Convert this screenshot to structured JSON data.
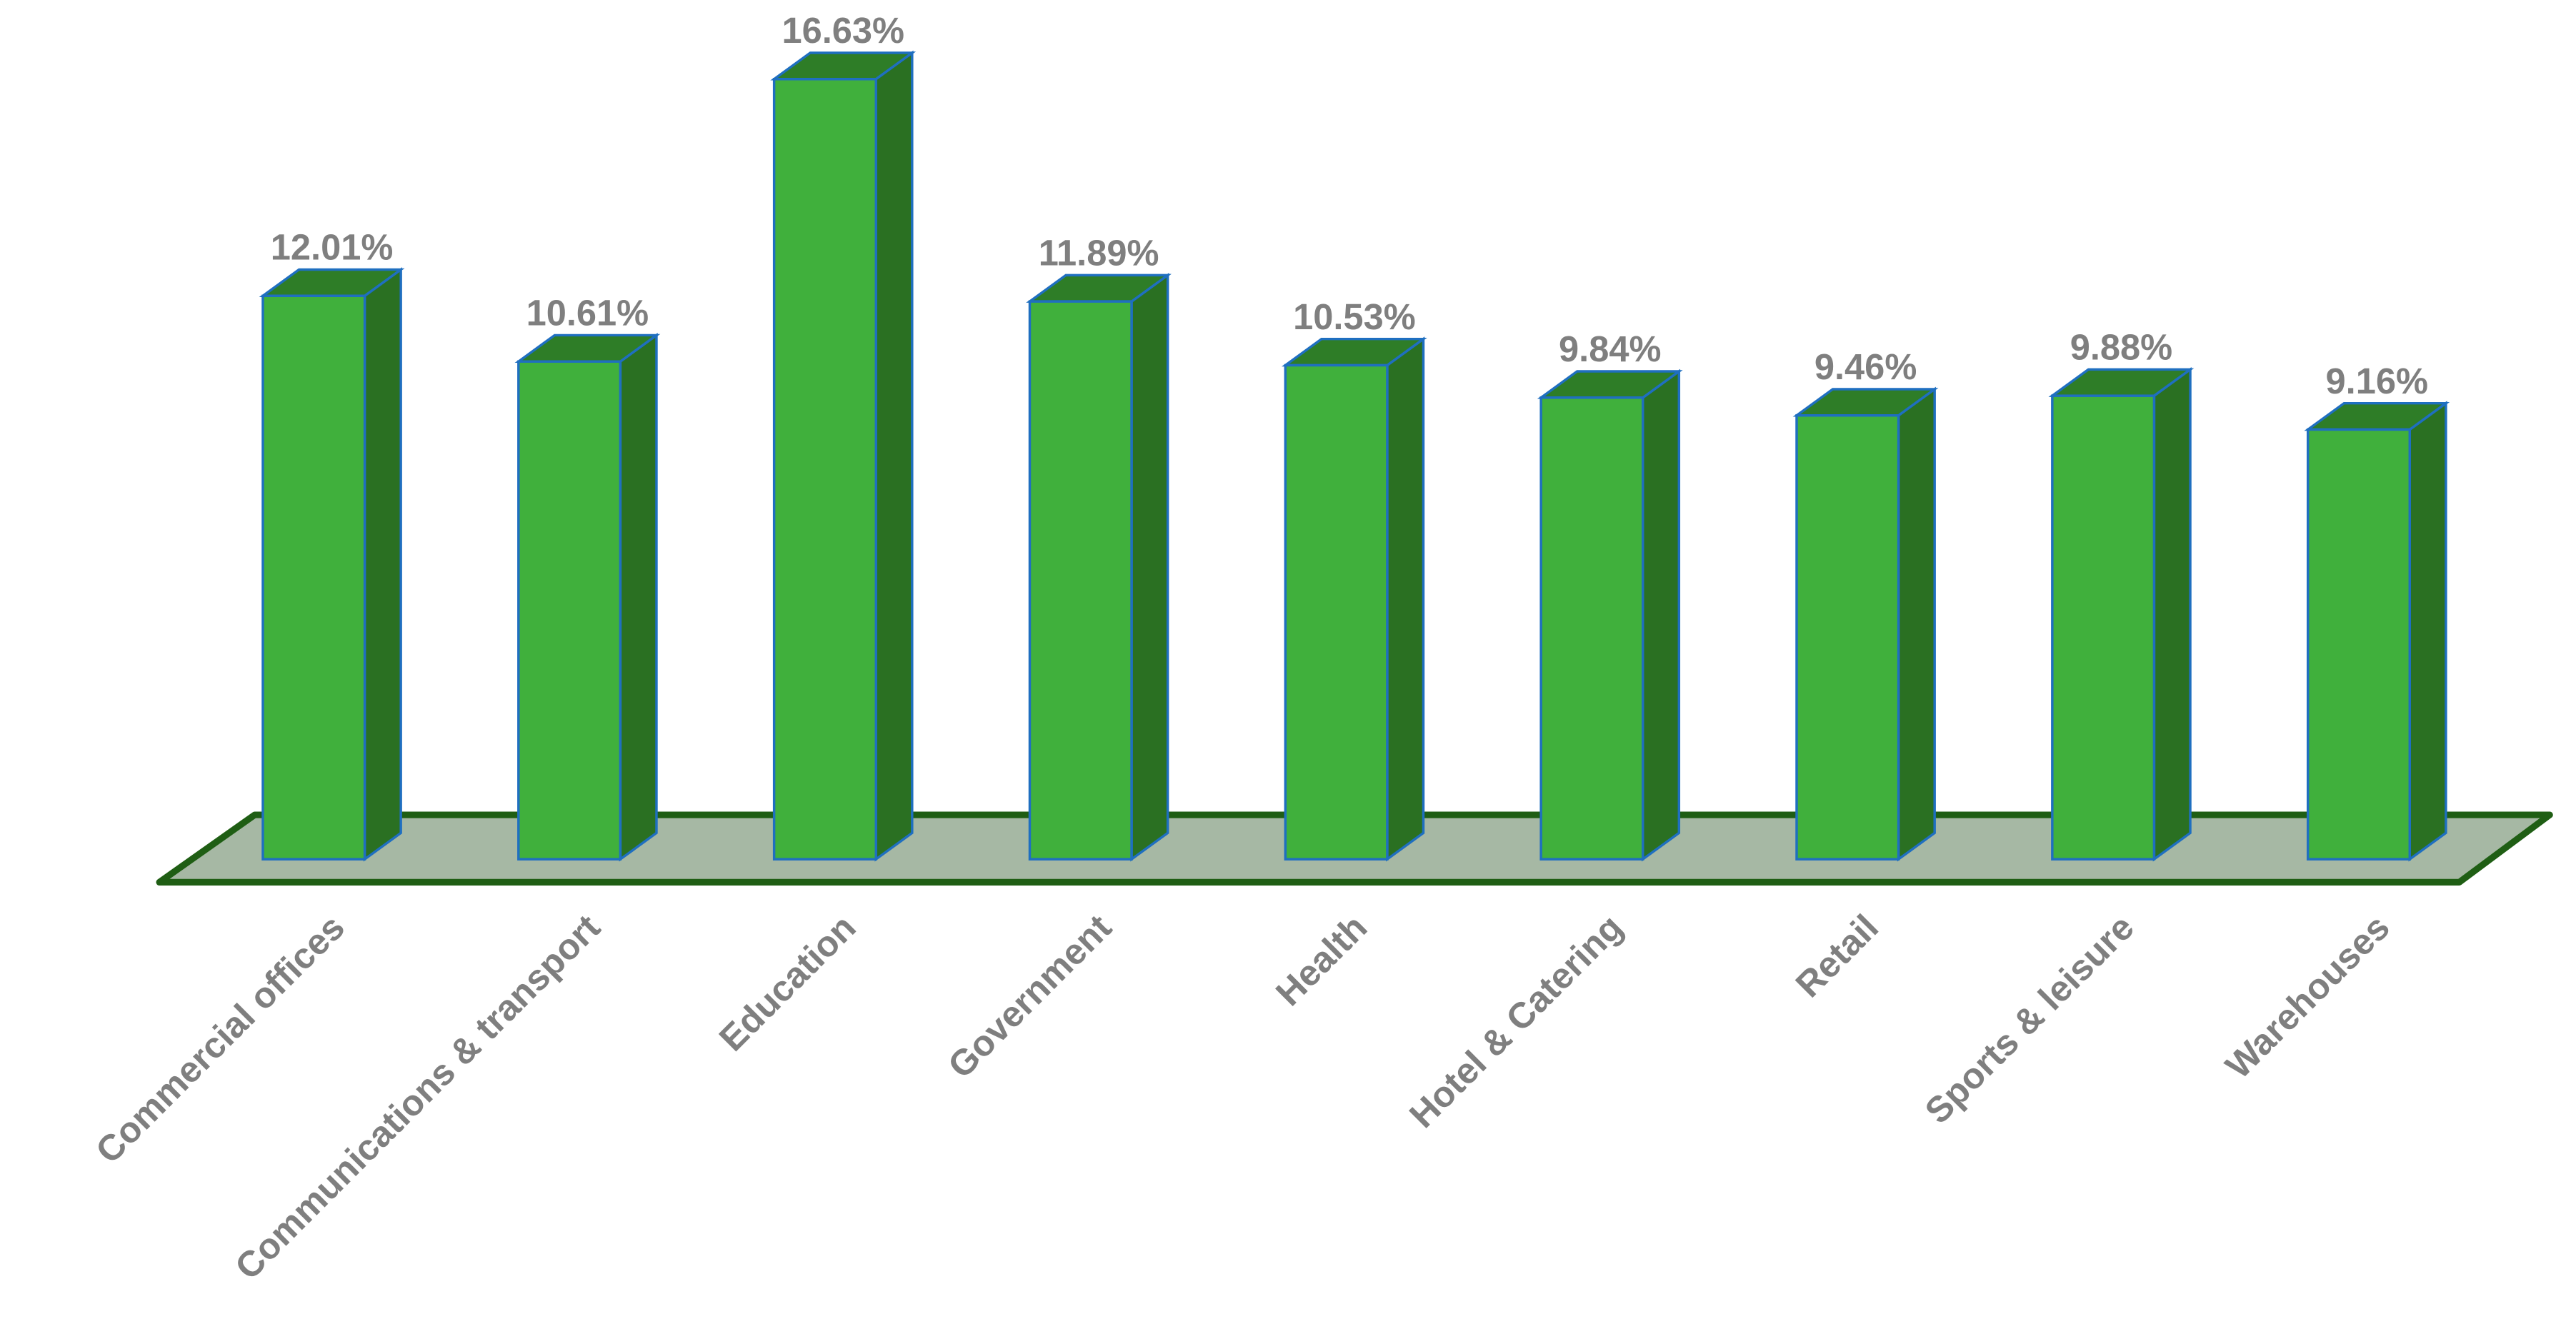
{
  "chart_data": {
    "type": "bar3d",
    "categories": [
      "Commercial offices",
      "Communications & transport",
      "Education",
      "Government",
      "Health",
      "Hotel & Catering",
      "Retail",
      "Sports & leisure",
      "Warehouses"
    ],
    "values": [
      12.01,
      10.61,
      16.63,
      11.89,
      10.53,
      9.84,
      9.46,
      9.88,
      9.16
    ],
    "value_labels": [
      "12.01%",
      "10.61%",
      "16.63%",
      "11.89%",
      "10.53%",
      "9.84%",
      "9.46%",
      "9.88%",
      "9.16%"
    ],
    "color": "#40b03c"
  }
}
